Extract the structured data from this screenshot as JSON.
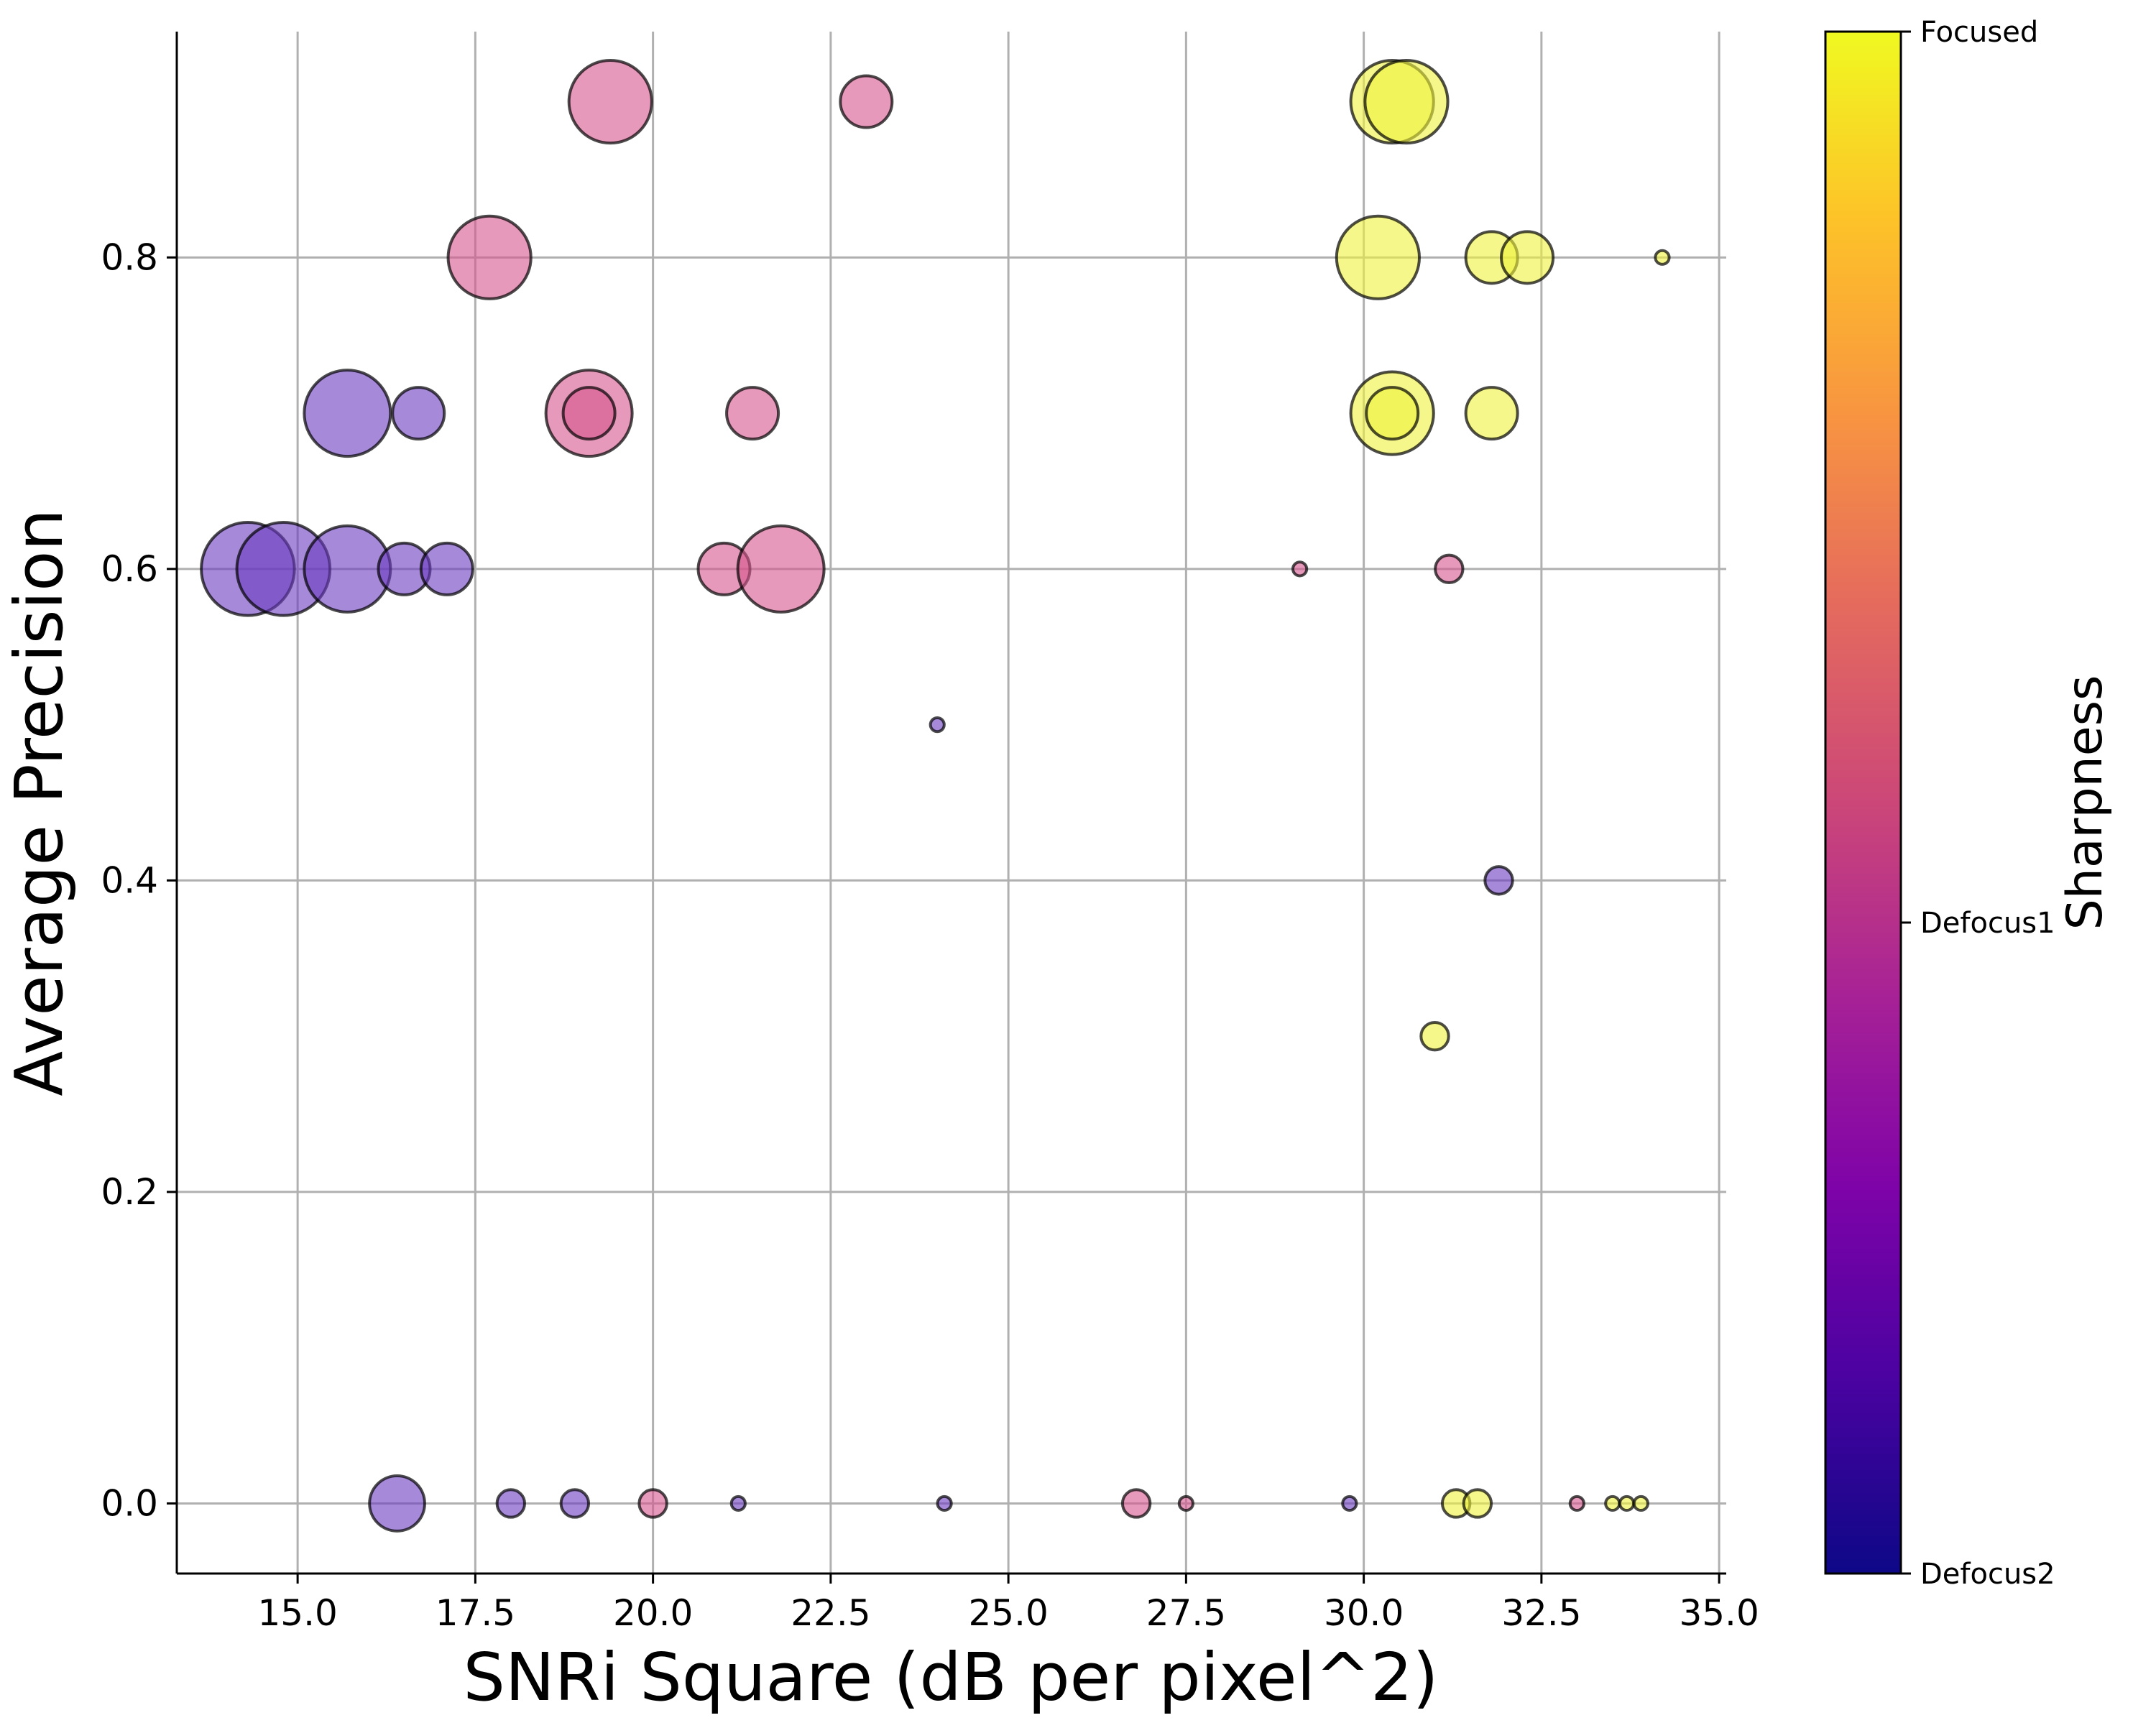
{
  "chart_data": {
    "type": "scatter",
    "title": "",
    "xlabel": "SNRi Square (dB per pixel^2)",
    "ylabel": "Average Precision",
    "xlim": [
      13.3,
      35.1
    ],
    "ylim": [
      -0.045,
      0.945
    ],
    "x_ticks": [
      "15.0",
      "17.5",
      "20.0",
      "22.5",
      "25.0",
      "27.5",
      "30.0",
      "32.5",
      "35.0"
    ],
    "y_ticks": [
      "0.0",
      "0.2",
      "0.4",
      "0.6",
      "0.8"
    ],
    "grid": true,
    "colorbar": {
      "label": "Sharpness",
      "colormap": "plasma",
      "ticks": [
        "Focused",
        "Defocus1",
        "Defocus2"
      ]
    },
    "colors": {
      "Defocus2": "#6a3bbf",
      "Defocus1": "#d6558c",
      "Focused": "#eef23c"
    },
    "series": [
      {
        "name": "Defocus2",
        "points": [
          {
            "x": 14.3,
            "y": 0.6,
            "size": 2.7
          },
          {
            "x": 14.8,
            "y": 0.6,
            "size": 2.7
          },
          {
            "x": 15.7,
            "y": 0.6,
            "size": 2.5
          },
          {
            "x": 16.5,
            "y": 0.6,
            "size": 1.5
          },
          {
            "x": 17.1,
            "y": 0.6,
            "size": 1.5
          },
          {
            "x": 15.7,
            "y": 0.7,
            "size": 2.5
          },
          {
            "x": 16.7,
            "y": 0.7,
            "size": 1.5
          },
          {
            "x": 24.0,
            "y": 0.5,
            "size": 0.4
          },
          {
            "x": 31.9,
            "y": 0.4,
            "size": 0.8
          },
          {
            "x": 16.4,
            "y": 0.0,
            "size": 1.6
          },
          {
            "x": 18.0,
            "y": 0.0,
            "size": 0.8
          },
          {
            "x": 18.9,
            "y": 0.0,
            "size": 0.8
          },
          {
            "x": 21.2,
            "y": 0.0,
            "size": 0.4
          },
          {
            "x": 24.1,
            "y": 0.0,
            "size": 0.4
          },
          {
            "x": 29.8,
            "y": 0.0,
            "size": 0.4
          }
        ]
      },
      {
        "name": "Defocus1",
        "points": [
          {
            "x": 19.4,
            "y": 0.9,
            "size": 2.4
          },
          {
            "x": 23.0,
            "y": 0.9,
            "size": 1.5
          },
          {
            "x": 17.7,
            "y": 0.8,
            "size": 2.4
          },
          {
            "x": 19.1,
            "y": 0.7,
            "size": 2.5
          },
          {
            "x": 19.1,
            "y": 0.7,
            "size": 1.5
          },
          {
            "x": 21.4,
            "y": 0.7,
            "size": 1.5
          },
          {
            "x": 21.0,
            "y": 0.6,
            "size": 1.5
          },
          {
            "x": 21.8,
            "y": 0.6,
            "size": 2.5
          },
          {
            "x": 29.1,
            "y": 0.6,
            "size": 0.4
          },
          {
            "x": 31.2,
            "y": 0.6,
            "size": 0.8
          },
          {
            "x": 20.0,
            "y": 0.0,
            "size": 0.8
          },
          {
            "x": 26.8,
            "y": 0.0,
            "size": 0.8
          },
          {
            "x": 27.5,
            "y": 0.0,
            "size": 0.4
          },
          {
            "x": 33.0,
            "y": 0.0,
            "size": 0.4
          }
        ]
      },
      {
        "name": "Focused",
        "points": [
          {
            "x": 30.4,
            "y": 0.9,
            "size": 2.4
          },
          {
            "x": 30.6,
            "y": 0.9,
            "size": 2.4
          },
          {
            "x": 30.2,
            "y": 0.8,
            "size": 2.4
          },
          {
            "x": 31.8,
            "y": 0.8,
            "size": 1.5
          },
          {
            "x": 32.3,
            "y": 0.8,
            "size": 1.5
          },
          {
            "x": 34.2,
            "y": 0.8,
            "size": 0.4
          },
          {
            "x": 30.4,
            "y": 0.7,
            "size": 2.4
          },
          {
            "x": 30.4,
            "y": 0.7,
            "size": 1.5
          },
          {
            "x": 31.8,
            "y": 0.7,
            "size": 1.5
          },
          {
            "x": 31.0,
            "y": 0.3,
            "size": 0.8
          },
          {
            "x": 31.3,
            "y": 0.0,
            "size": 0.8
          },
          {
            "x": 31.6,
            "y": 0.0,
            "size": 0.8
          },
          {
            "x": 33.5,
            "y": 0.0,
            "size": 0.4
          },
          {
            "x": 33.7,
            "y": 0.0,
            "size": 0.4
          },
          {
            "x": 33.9,
            "y": 0.0,
            "size": 0.4
          }
        ]
      }
    ]
  }
}
